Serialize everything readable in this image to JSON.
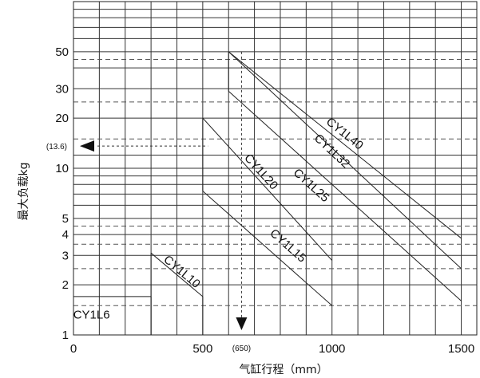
{
  "chart_data": {
    "type": "line",
    "xlabel": "气缸行程（mm）",
    "ylabel": "最大负载kg",
    "xlim": [
      0,
      1560
    ],
    "ylim": [
      1,
      100
    ],
    "y_scale": "log",
    "x_ticks": [
      0,
      500,
      1000,
      1500
    ],
    "x_tick_labels": [
      "0",
      "500",
      "1000",
      "1500"
    ],
    "y_ticks": [
      1,
      2,
      3,
      4,
      5,
      10,
      20,
      30,
      50
    ],
    "y_tick_labels": [
      "1",
      "2",
      "3",
      "4",
      "5",
      "10",
      "20",
      "30",
      "50"
    ],
    "grid": true,
    "series": [
      {
        "name": "CY1L6",
        "x": [
          0,
          300
        ],
        "y": [
          1.7,
          1.7
        ],
        "label_anchor": [
          70,
          1.25
        ]
      },
      {
        "name": "CY1L10",
        "x": [
          300,
          500
        ],
        "y": [
          3.1,
          1.7
        ],
        "label_anchor": [
          410,
          2.3
        ]
      },
      {
        "name": "CY1L15",
        "x": [
          500,
          1000
        ],
        "y": [
          7.3,
          1.5
        ],
        "label_anchor": [
          820,
          3.3
        ]
      },
      {
        "name": "CY1L20",
        "x": [
          500,
          1000
        ],
        "y": [
          20,
          2.8
        ],
        "label_anchor": [
          715,
          9.2
        ]
      },
      {
        "name": "CY1L25",
        "x": [
          600,
          1500
        ],
        "y": [
          29,
          1.6
        ],
        "label_anchor": [
          910,
          7.6
        ]
      },
      {
        "name": "CY1L32",
        "x": [
          600,
          1500
        ],
        "y": [
          50,
          2.5
        ],
        "label_anchor": [
          990,
          12.2
        ]
      },
      {
        "name": "CY1L40",
        "x": [
          600,
          1500
        ],
        "y": [
          50,
          3.8
        ],
        "label_anchor": [
          1040,
          15.5
        ]
      }
    ],
    "annotations": [
      {
        "text": "(650)",
        "x": 650,
        "y": 1
      },
      {
        "text": "(13.6)",
        "x": 0,
        "y": 13.6
      }
    ]
  }
}
